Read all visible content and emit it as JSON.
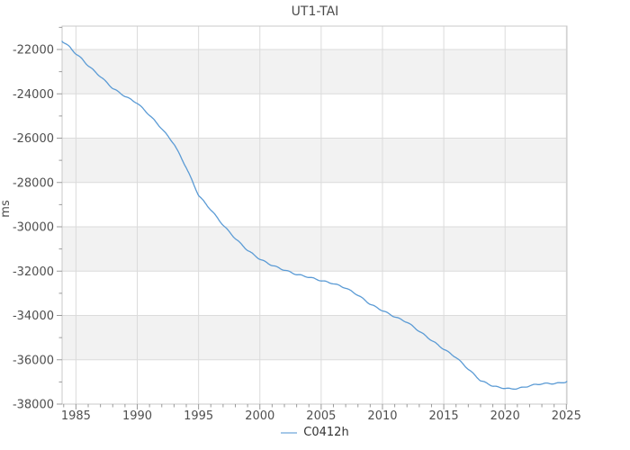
{
  "chart_data": {
    "type": "line",
    "title": "UT1-TAI",
    "xlabel": "",
    "ylabel": "ms",
    "legend_label": "C0412h",
    "legend_entries": [
      "C0412h"
    ],
    "legend_position": "bottom-center",
    "grid": true,
    "xlim": [
      1983.87,
      2025.05
    ],
    "ylim": [
      -38000,
      -20944
    ],
    "x_major_ticks": [
      1985,
      1990,
      1995,
      2000,
      2005,
      2010,
      2015,
      2020,
      2025
    ],
    "x_minor_tick_interval": 1,
    "y_major_ticks": [
      -38000,
      -36000,
      -34000,
      -32000,
      -30000,
      -28000,
      -26000,
      -24000,
      -22000
    ],
    "y_minor_tick_interval": 1000,
    "band_pairs": [
      [
        -22000,
        -24000
      ],
      [
        -26000,
        -28000
      ],
      [
        -30000,
        -32000
      ],
      [
        -34000,
        -36000
      ]
    ],
    "seasonal_wiggle_ms": 25,
    "series": [
      {
        "name": "C0412h",
        "color": "#5b9bd5",
        "points": [
          [
            1983.87,
            -21630
          ],
          [
            1984.5,
            -21890
          ],
          [
            1985,
            -22200
          ],
          [
            1985.5,
            -22430
          ],
          [
            1986,
            -22730
          ],
          [
            1987,
            -23220
          ],
          [
            1988,
            -23750
          ],
          [
            1989,
            -24110
          ],
          [
            1990,
            -24420
          ],
          [
            1991,
            -24960
          ],
          [
            1992,
            -25570
          ],
          [
            1993,
            -26260
          ],
          [
            1994,
            -27330
          ],
          [
            1995,
            -28580
          ],
          [
            1996,
            -29230
          ],
          [
            1997,
            -29920
          ],
          [
            1998,
            -30530
          ],
          [
            1999,
            -31060
          ],
          [
            2000,
            -31460
          ],
          [
            2001,
            -31740
          ],
          [
            2002,
            -31950
          ],
          [
            2003,
            -32150
          ],
          [
            2004,
            -32270
          ],
          [
            2005,
            -32430
          ],
          [
            2006,
            -32560
          ],
          [
            2007,
            -32760
          ],
          [
            2008,
            -33080
          ],
          [
            2009,
            -33490
          ],
          [
            2010,
            -33780
          ],
          [
            2011,
            -34060
          ],
          [
            2012,
            -34300
          ],
          [
            2013,
            -34710
          ],
          [
            2014,
            -35120
          ],
          [
            2015,
            -35520
          ],
          [
            2016,
            -35890
          ],
          [
            2017,
            -36420
          ],
          [
            2018,
            -36940
          ],
          [
            2019,
            -37180
          ],
          [
            2019.5,
            -37250
          ],
          [
            2020,
            -37280
          ],
          [
            2020.5,
            -37320
          ],
          [
            2021,
            -37290
          ],
          [
            2021.5,
            -37250
          ],
          [
            2022,
            -37170
          ],
          [
            2022.5,
            -37120
          ],
          [
            2023,
            -37080
          ],
          [
            2023.5,
            -37070
          ],
          [
            2024,
            -37070
          ],
          [
            2024.5,
            -37050
          ],
          [
            2025.05,
            -36980
          ]
        ]
      }
    ],
    "colors": {
      "band": "#f2f2f2",
      "grid": "#dbdbdb",
      "border": "#c9c9c9",
      "tick": "#9a9a9a",
      "tick_text": "#4f4f4f",
      "line": "#5b9bd5"
    }
  }
}
